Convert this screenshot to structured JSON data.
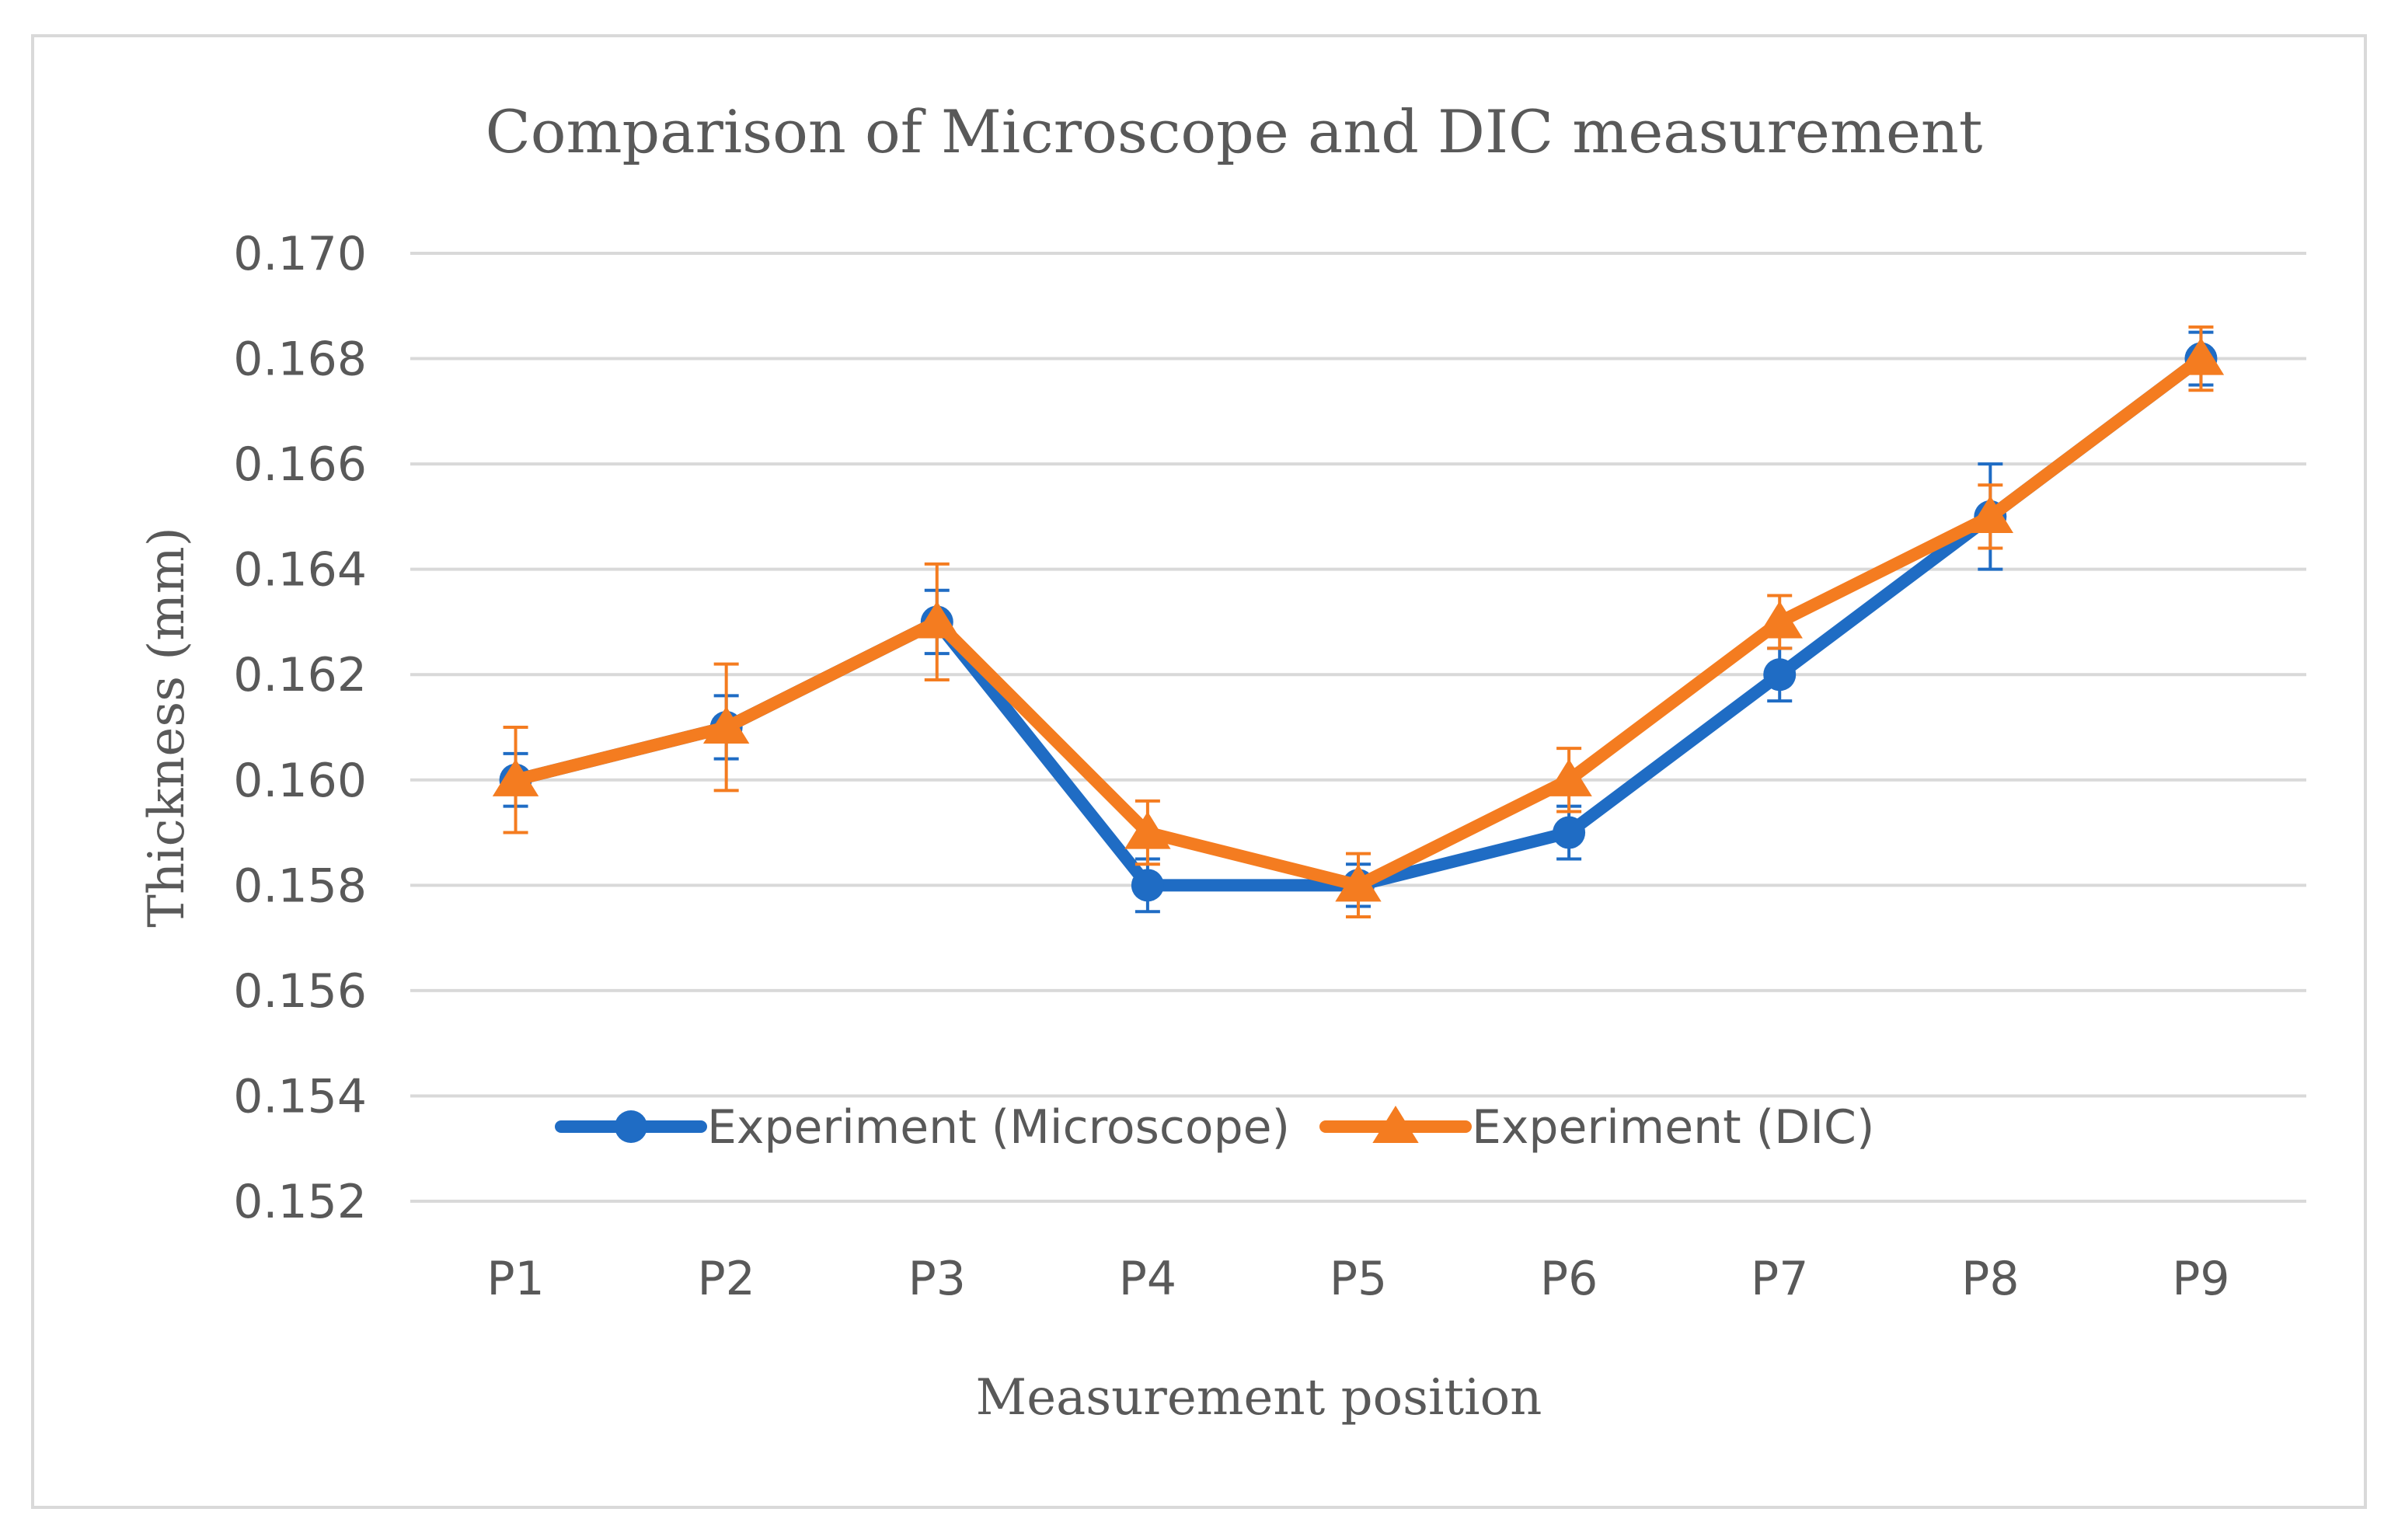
{
  "chart_data": {
    "type": "line",
    "title": "Comparison of Microscope and DIC measurement",
    "xlabel": "Measurement position",
    "ylabel": "Thickness (mm)",
    "categories": [
      "P1",
      "P2",
      "P3",
      "P4",
      "P5",
      "P6",
      "P7",
      "P8",
      "P9"
    ],
    "ylim": [
      0.152,
      0.17
    ],
    "yticks": [
      "0.152",
      "0.154",
      "0.156",
      "0.158",
      "0.160",
      "0.162",
      "0.164",
      "0.166",
      "0.168",
      "0.170"
    ],
    "ytick_values": [
      0.152,
      0.154,
      0.156,
      0.158,
      0.16,
      0.162,
      0.164,
      0.166,
      0.168,
      0.17
    ],
    "grid": true,
    "legend_position": "bottom-left inside plot",
    "series": [
      {
        "name": "Experiment (Microscope)",
        "color": "#1f6cc4",
        "marker": "circle",
        "values": [
          0.16,
          0.161,
          0.163,
          0.158,
          0.158,
          0.159,
          0.162,
          0.165,
          0.168
        ],
        "error": [
          0.0005,
          0.0006,
          0.0006,
          0.0005,
          0.0004,
          0.0005,
          0.0005,
          0.001,
          0.0005
        ]
      },
      {
        "name": "Experiment (DIC)",
        "color": "#f47c20",
        "marker": "triangle",
        "values": [
          0.16,
          0.161,
          0.163,
          0.159,
          0.158,
          0.16,
          0.163,
          0.165,
          0.168
        ],
        "error": [
          0.001,
          0.0012,
          0.0011,
          0.0006,
          0.0006,
          0.0006,
          0.0005,
          0.0006,
          0.0006
        ]
      }
    ]
  }
}
